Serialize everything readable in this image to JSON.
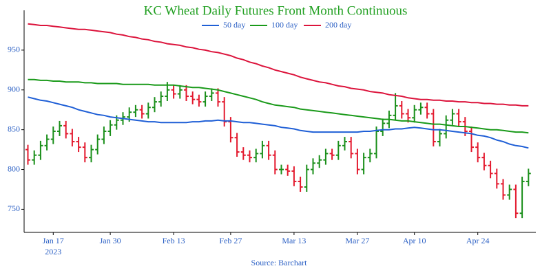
{
  "chart_data": {
    "type": "ohlc",
    "title": "KC Wheat Daily Futures Front Month Continuous",
    "source": "Source: Barchart",
    "x_sublabel": "2023",
    "categories": [
      null,
      null,
      null,
      null,
      "Jan 17",
      null,
      null,
      null,
      null,
      null,
      null,
      null,
      null,
      "Jan 30",
      null,
      null,
      null,
      null,
      null,
      null,
      null,
      null,
      null,
      "Feb 13",
      null,
      null,
      null,
      null,
      null,
      null,
      null,
      null,
      "Feb 27",
      null,
      null,
      null,
      null,
      null,
      null,
      null,
      null,
      null,
      "Mar 13",
      null,
      null,
      null,
      null,
      null,
      null,
      null,
      null,
      null,
      "Mar 27",
      null,
      null,
      null,
      null,
      null,
      null,
      null,
      null,
      "Apr 10",
      null,
      null,
      null,
      null,
      null,
      null,
      null,
      null,
      null,
      "Apr 24",
      null,
      null,
      null,
      null,
      null,
      null,
      null,
      null
    ],
    "ohlc": {
      "up_color": "#1a8f1a",
      "down_color": "#e3182d",
      "open": [
        825,
        812,
        818,
        830,
        838,
        848,
        855,
        845,
        835,
        828,
        815,
        825,
        838,
        848,
        856,
        862,
        866,
        872,
        875,
        870,
        878,
        885,
        892,
        900,
        895,
        900,
        892,
        888,
        885,
        892,
        896,
        885,
        860,
        840,
        822,
        818,
        815,
        820,
        830,
        818,
        800,
        800,
        798,
        785,
        778,
        800,
        808,
        812,
        820,
        818,
        830,
        835,
        820,
        800,
        815,
        820,
        848,
        858,
        868,
        880,
        870,
        865,
        875,
        878,
        870,
        835,
        845,
        862,
        870,
        860,
        848,
        828,
        815,
        805,
        795,
        782,
        768,
        775,
        745,
        785
      ],
      "high": [
        831,
        824,
        836,
        844,
        854,
        861,
        861,
        851,
        841,
        834,
        831,
        844,
        854,
        862,
        868,
        872,
        878,
        881,
        881,
        884,
        891,
        898,
        910,
        906,
        906,
        906,
        898,
        894,
        898,
        902,
        902,
        891,
        866,
        846,
        828,
        824,
        826,
        836,
        836,
        824,
        806,
        806,
        804,
        791,
        806,
        814,
        818,
        826,
        826,
        836,
        841,
        841,
        826,
        821,
        826,
        854,
        864,
        874,
        896,
        886,
        876,
        881,
        884,
        884,
        876,
        851,
        868,
        876,
        876,
        866,
        854,
        834,
        821,
        811,
        801,
        788,
        781,
        781,
        791,
        801
      ],
      "low": [
        806,
        806,
        812,
        824,
        832,
        842,
        839,
        829,
        822,
        809,
        809,
        819,
        832,
        842,
        850,
        856,
        860,
        866,
        864,
        864,
        872,
        879,
        886,
        889,
        889,
        886,
        882,
        879,
        879,
        886,
        879,
        854,
        834,
        816,
        812,
        809,
        809,
        814,
        812,
        794,
        794,
        792,
        779,
        772,
        772,
        794,
        802,
        806,
        812,
        812,
        824,
        814,
        794,
        794,
        809,
        814,
        842,
        852,
        862,
        864,
        859,
        859,
        869,
        864,
        829,
        829,
        839,
        856,
        854,
        842,
        822,
        809,
        799,
        789,
        776,
        762,
        762,
        739,
        739,
        779
      ],
      "close": [
        812,
        818,
        830,
        838,
        848,
        855,
        845,
        835,
        828,
        815,
        825,
        838,
        848,
        856,
        862,
        866,
        872,
        875,
        870,
        878,
        885,
        892,
        900,
        895,
        900,
        892,
        888,
        885,
        892,
        896,
        885,
        860,
        840,
        822,
        818,
        815,
        820,
        830,
        818,
        800,
        800,
        798,
        785,
        778,
        800,
        808,
        812,
        820,
        818,
        830,
        835,
        820,
        800,
        815,
        820,
        848,
        858,
        868,
        880,
        870,
        865,
        875,
        878,
        870,
        835,
        845,
        862,
        870,
        860,
        848,
        828,
        815,
        805,
        795,
        782,
        768,
        775,
        745,
        785,
        795
      ]
    },
    "series": [
      {
        "name": "50 day",
        "color": "#1f5fd6",
        "values": [
          891,
          889,
          887,
          886,
          884,
          882,
          880,
          878,
          875,
          873,
          871,
          869,
          868,
          866,
          865,
          864,
          863,
          862,
          861,
          860,
          860,
          859,
          859,
          859,
          859,
          859,
          860,
          860,
          861,
          861,
          862,
          861,
          861,
          860,
          859,
          859,
          858,
          857,
          856,
          855,
          853,
          852,
          851,
          849,
          848,
          847,
          847,
          847,
          847,
          847,
          847,
          847,
          847,
          848,
          848,
          849,
          850,
          850,
          851,
          851,
          852,
          853,
          852,
          851,
          850,
          850,
          849,
          848,
          847,
          846,
          845,
          843,
          842,
          840,
          837,
          835,
          832,
          830,
          829,
          827
        ]
      },
      {
        "name": "100 day",
        "color": "#1a9a1a",
        "values": [
          913,
          913,
          912,
          912,
          911,
          911,
          910,
          910,
          910,
          909,
          909,
          908,
          908,
          908,
          908,
          907,
          907,
          907,
          907,
          907,
          906,
          906,
          906,
          906,
          905,
          904,
          903,
          903,
          902,
          901,
          900,
          898,
          896,
          894,
          892,
          890,
          888,
          885,
          883,
          881,
          880,
          879,
          878,
          876,
          875,
          874,
          873,
          872,
          871,
          870,
          869,
          868,
          867,
          866,
          865,
          864,
          863,
          863,
          862,
          861,
          861,
          860,
          859,
          858,
          857,
          857,
          856,
          855,
          854,
          854,
          853,
          852,
          851,
          850,
          850,
          849,
          848,
          847,
          847,
          846
        ]
      },
      {
        "name": "200 day",
        "color": "#dc143c",
        "values": [
          983,
          982,
          981,
          981,
          980,
          979,
          978,
          977,
          976,
          976,
          975,
          974,
          973,
          972,
          970,
          969,
          967,
          966,
          964,
          963,
          961,
          960,
          958,
          957,
          956,
          954,
          953,
          951,
          950,
          948,
          947,
          945,
          943,
          940,
          938,
          935,
          933,
          930,
          928,
          925,
          923,
          921,
          919,
          916,
          914,
          912,
          910,
          909,
          907,
          905,
          904,
          902,
          901,
          900,
          898,
          897,
          896,
          894,
          893,
          892,
          890,
          889,
          888,
          888,
          887,
          887,
          886,
          886,
          885,
          885,
          884,
          884,
          883,
          883,
          882,
          882,
          881,
          881,
          880,
          880
        ]
      }
    ],
    "ylim": [
      721,
      1000
    ],
    "yticks": [
      750,
      800,
      850,
      900,
      950
    ],
    "legend": "top"
  }
}
